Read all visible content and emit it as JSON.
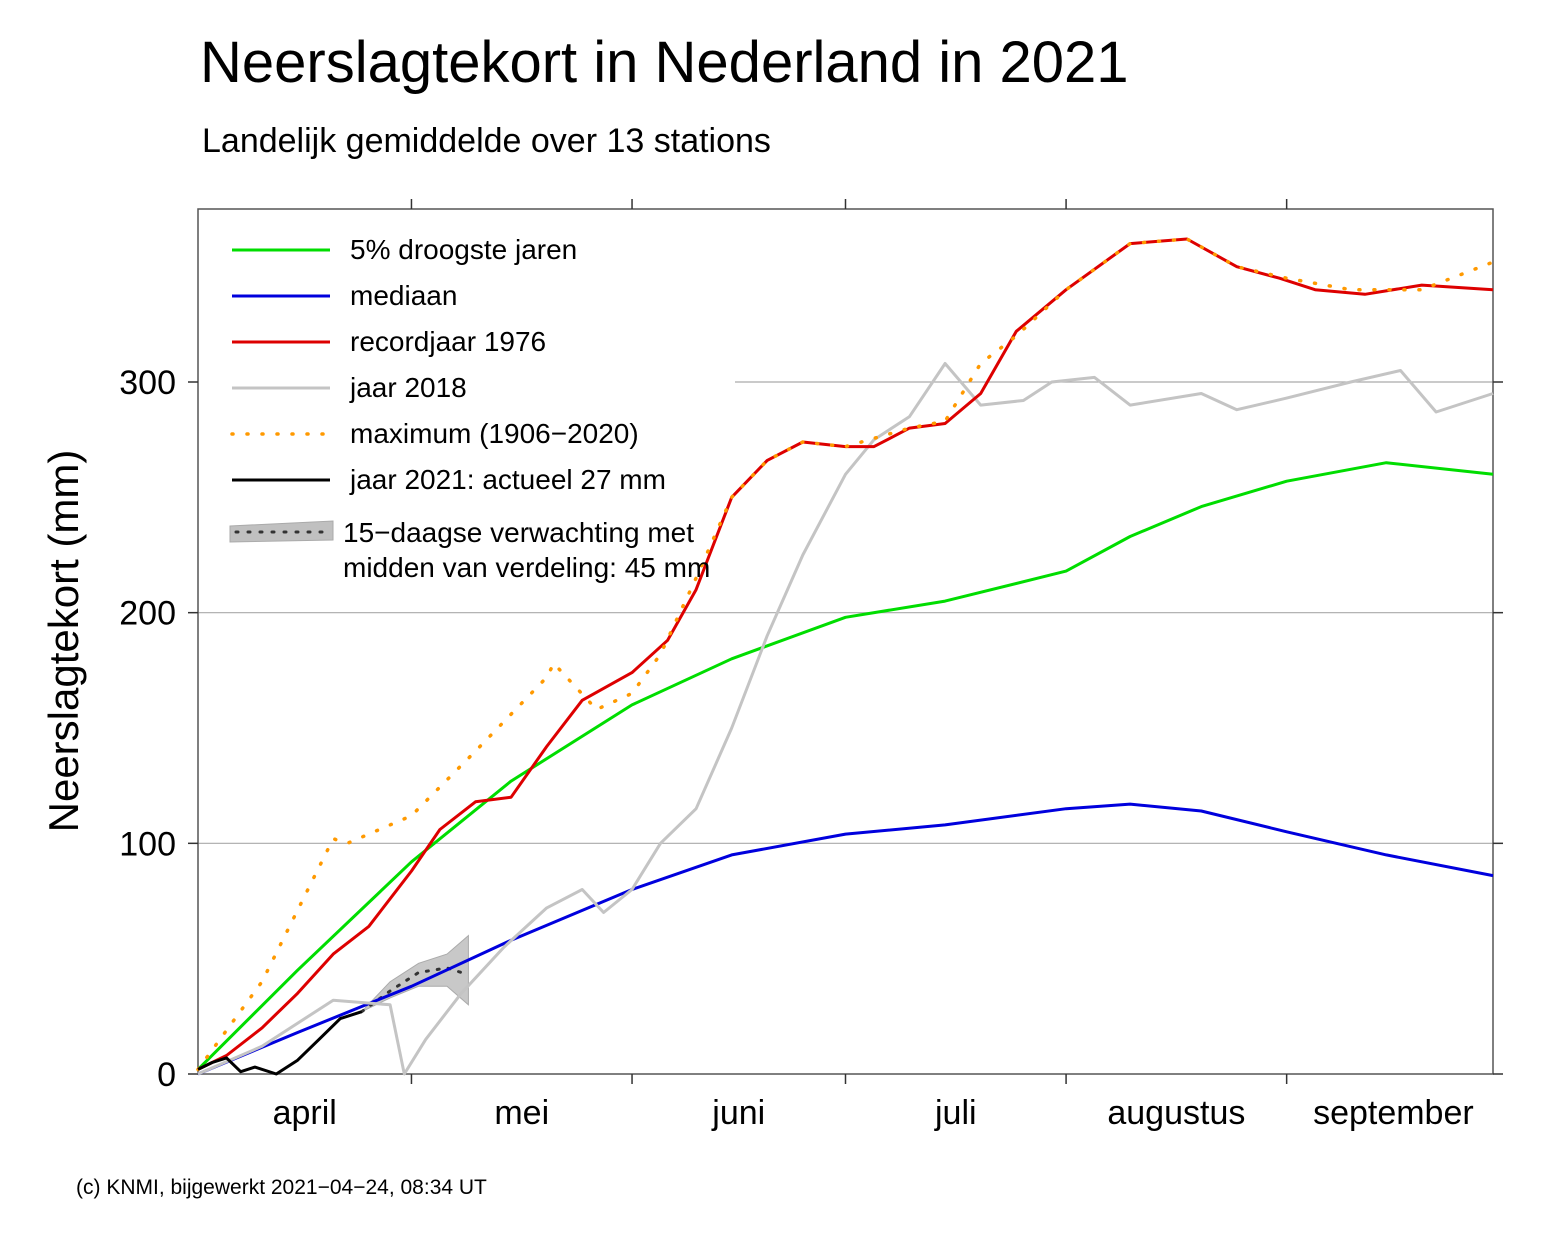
{
  "title": "Neerslagtekort in Nederland in 2021",
  "subtitle": "Landelijk gemiddelde over 13 stations",
  "footer": "(c) KNMI, bijgewerkt 2021−04−24, 08:34 UT",
  "chart_data": {
    "type": "line",
    "ylabel": "Neerslagtekort (mm)",
    "ylim": [
      0,
      375
    ],
    "xlim": [
      "2021-04-01",
      "2021-09-30"
    ],
    "yticks": [
      0,
      100,
      200,
      300
    ],
    "xticklabels": [
      "april",
      "mei",
      "juni",
      "juli",
      "augustus",
      "september"
    ],
    "grid": "horizontal",
    "legend_position": "top-left",
    "legend_note": [
      "midden van verdeling: 45 mm"
    ],
    "series": [
      {
        "name": "5% droogste jaren",
        "color": "#00dd00",
        "style": "solid",
        "x": [
          "2021-04-01",
          "2021-04-15",
          "2021-05-01",
          "2021-05-15",
          "2021-06-01",
          "2021-06-15",
          "2021-07-01",
          "2021-07-15",
          "2021-08-01",
          "2021-08-10",
          "2021-08-20",
          "2021-09-01",
          "2021-09-15",
          "2021-09-30"
        ],
        "values": [
          2,
          45,
          92,
          127,
          160,
          180,
          198,
          205,
          218,
          233,
          246,
          257,
          265,
          260
        ]
      },
      {
        "name": "mediaan",
        "color": "#0000dd",
        "style": "solid",
        "x": [
          "2021-04-01",
          "2021-04-15",
          "2021-05-01",
          "2021-05-15",
          "2021-06-01",
          "2021-06-15",
          "2021-07-01",
          "2021-07-15",
          "2021-08-01",
          "2021-08-10",
          "2021-08-20",
          "2021-09-01",
          "2021-09-15",
          "2021-09-30"
        ],
        "values": [
          0,
          18,
          38,
          58,
          80,
          95,
          104,
          108,
          115,
          117,
          114,
          105,
          95,
          86
        ]
      },
      {
        "name": "recordjaar 1976",
        "color": "#dd0000",
        "style": "solid",
        "x": [
          "2021-04-01",
          "2021-04-05",
          "2021-04-10",
          "2021-04-15",
          "2021-04-20",
          "2021-04-25",
          "2021-05-01",
          "2021-05-05",
          "2021-05-10",
          "2021-05-15",
          "2021-05-20",
          "2021-05-25",
          "2021-06-01",
          "2021-06-06",
          "2021-06-10",
          "2021-06-15",
          "2021-06-20",
          "2021-06-25",
          "2021-07-01",
          "2021-07-05",
          "2021-07-10",
          "2021-07-15",
          "2021-07-20",
          "2021-07-25",
          "2021-08-01",
          "2021-08-10",
          "2021-08-18",
          "2021-08-25",
          "2021-08-31",
          "2021-09-05",
          "2021-09-12",
          "2021-09-20",
          "2021-09-30"
        ],
        "values": [
          2,
          8,
          20,
          35,
          52,
          64,
          88,
          106,
          118,
          120,
          142,
          162,
          174,
          188,
          210,
          250,
          266,
          274,
          272,
          272,
          280,
          282,
          295,
          322,
          340,
          360,
          362,
          350,
          345,
          340,
          338,
          342,
          340
        ]
      },
      {
        "name": "jaar 2018",
        "color": "#c4c4c4",
        "style": "solid",
        "x": [
          "2021-04-01",
          "2021-04-10",
          "2021-04-20",
          "2021-04-28",
          "2021-04-30",
          "2021-05-03",
          "2021-05-08",
          "2021-05-14",
          "2021-05-20",
          "2021-05-25",
          "2021-05-28",
          "2021-06-01",
          "2021-06-05",
          "2021-06-10",
          "2021-06-15",
          "2021-06-20",
          "2021-06-25",
          "2021-07-01",
          "2021-07-05",
          "2021-07-10",
          "2021-07-15",
          "2021-07-20",
          "2021-07-26",
          "2021-07-30",
          "2021-08-05",
          "2021-08-10",
          "2021-08-20",
          "2021-08-25",
          "2021-09-01",
          "2021-09-10",
          "2021-09-17",
          "2021-09-22",
          "2021-09-30"
        ],
        "values": [
          0,
          12,
          32,
          30,
          0,
          15,
          35,
          55,
          72,
          80,
          70,
          80,
          100,
          115,
          150,
          190,
          225,
          260,
          275,
          285,
          308,
          290,
          292,
          300,
          302,
          290,
          295,
          288,
          293,
          300,
          305,
          287,
          295
        ]
      },
      {
        "name": "maximum (1906−2020)",
        "color": "#ff9900",
        "style": "dotted",
        "x": [
          "2021-04-01",
          "2021-04-10",
          "2021-04-20",
          "2021-04-22",
          "2021-05-01",
          "2021-05-10",
          "2021-05-20",
          "2021-05-21",
          "2021-05-27",
          "2021-06-01",
          "2021-06-05",
          "2021-06-10",
          "2021-06-15",
          "2021-06-20",
          "2021-06-25",
          "2021-07-01",
          "2021-07-10",
          "2021-07-15",
          "2021-07-20",
          "2021-07-25",
          "2021-08-01",
          "2021-08-10",
          "2021-08-18",
          "2021-08-25",
          "2021-09-01",
          "2021-09-10",
          "2021-09-20",
          "2021-09-30"
        ],
        "values": [
          2,
          40,
          102,
          100,
          112,
          140,
          172,
          178,
          158,
          165,
          182,
          215,
          250,
          266,
          274,
          272,
          280,
          283,
          308,
          320,
          340,
          360,
          362,
          350,
          345,
          340,
          340,
          352
        ]
      },
      {
        "name": "jaar 2021: actueel 27 mm",
        "color": "#000000",
        "style": "solid",
        "x": [
          "2021-04-01",
          "2021-04-03",
          "2021-04-05",
          "2021-04-07",
          "2021-04-09",
          "2021-04-12",
          "2021-04-15",
          "2021-04-18",
          "2021-04-21",
          "2021-04-24"
        ],
        "values": [
          2,
          5,
          7,
          1,
          3,
          0,
          6,
          15,
          24,
          27
        ]
      },
      {
        "name": "15−daagse verwachting met",
        "color": "#999999",
        "style": "dotted-with-band",
        "x": [
          "2021-04-24",
          "2021-04-28",
          "2021-05-02",
          "2021-05-06",
          "2021-05-09"
        ],
        "values": [
          27,
          36,
          44,
          46,
          43
        ],
        "band_low": [
          27,
          33,
          38,
          38,
          30
        ],
        "band_high": [
          27,
          40,
          48,
          52,
          60
        ]
      }
    ]
  }
}
